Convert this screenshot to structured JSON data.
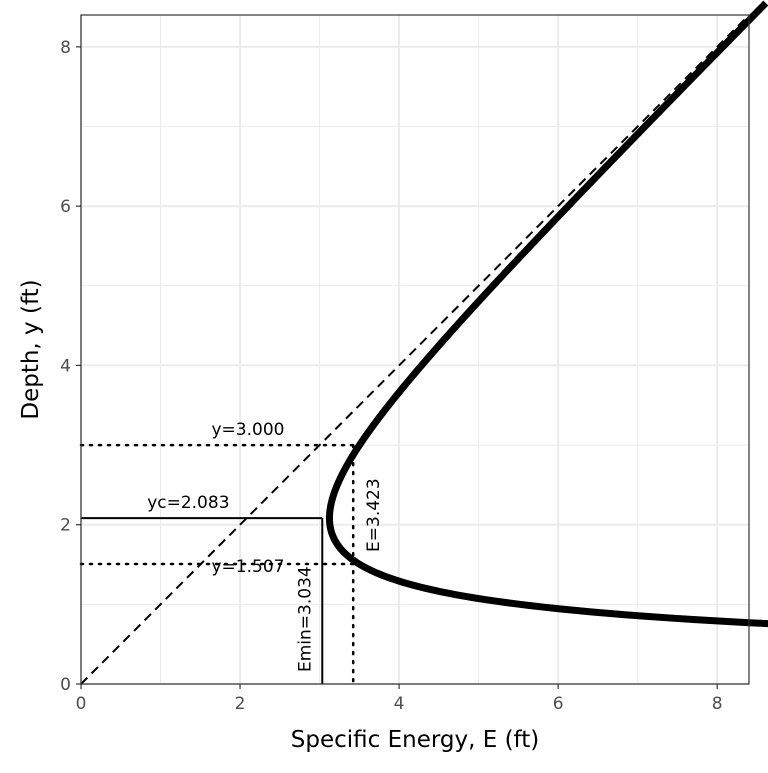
{
  "chart_data": {
    "type": "line",
    "xlabel": "Specific Energy, E (ft)",
    "ylabel": "Depth, y (ft)",
    "xlim": [
      0,
      8.4
    ],
    "ylim": [
      0,
      8.4
    ],
    "x_ticks": [
      0,
      2,
      4,
      6,
      8
    ],
    "y_ticks": [
      0,
      2,
      4,
      6,
      8
    ],
    "grid": true,
    "curve": {
      "q": 2.083,
      "y_range": [
        0.75,
        8.55
      ]
    },
    "reference_line": {
      "x": [
        0,
        8.4
      ],
      "y": [
        0,
        8.4
      ],
      "style": "dashed"
    },
    "critical": {
      "yc": 2.083,
      "emin": 3.034
    },
    "alternate_depths": {
      "e": 3.423,
      "y_upper": 3.0,
      "y_lower": 1.507
    },
    "annotations": {
      "yc": "yc=2.083",
      "emin": "Emin=3.034",
      "y_upper": "y=3.000",
      "y_lower": "y=1.507",
      "e": "E=3.423"
    },
    "colors": {
      "curve": "#000000",
      "grid": "#ebebeb",
      "panel_border": "#333333"
    }
  }
}
